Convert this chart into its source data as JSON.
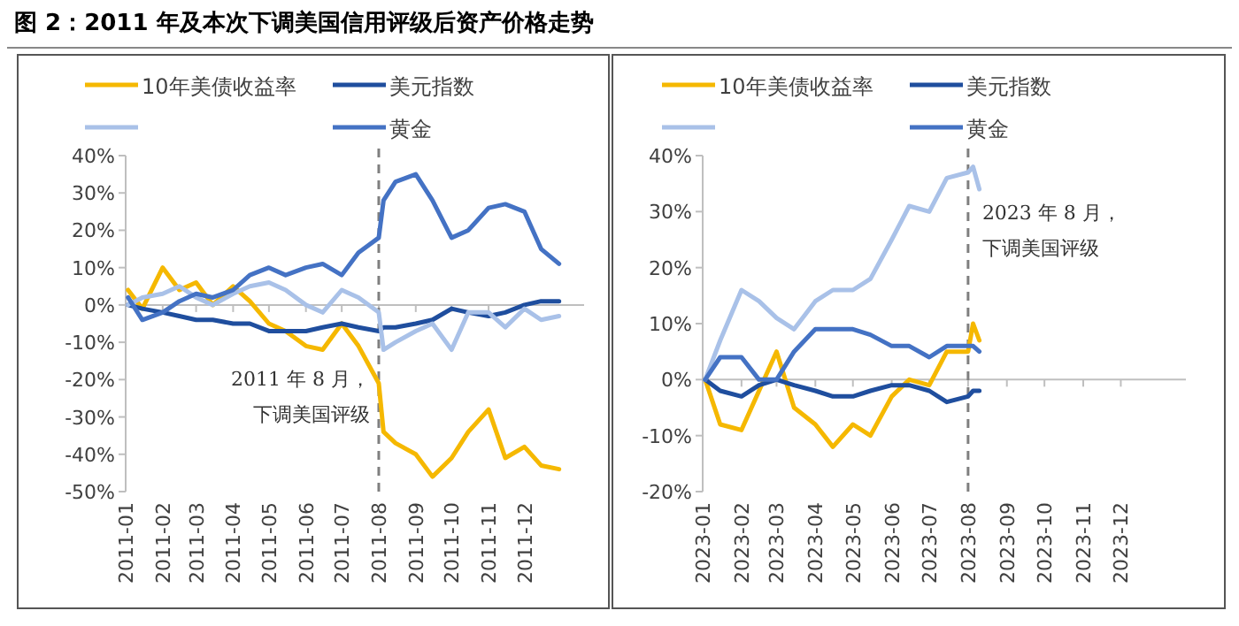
{
  "chart_data": [
    {
      "type": "line",
      "title": "图 2：2011 年及本次下调美国信用评级后资产价格走势",
      "x": [
        "2011-01-03",
        "2011-01-15",
        "2011-02-01",
        "2011-02-15",
        "2011-03-01",
        "2011-03-15",
        "2011-04-01",
        "2011-04-15",
        "2011-05-01",
        "2011-05-15",
        "2011-06-01",
        "2011-06-15",
        "2011-07-01",
        "2011-07-15",
        "2011-08-01",
        "2011-08-05",
        "2011-08-15",
        "2011-09-01",
        "2011-09-15",
        "2011-10-01",
        "2011-10-15",
        "2011-11-01",
        "2011-11-15",
        "2011-12-01",
        "2011-12-15",
        "2011-12-30"
      ],
      "series": [
        {
          "name": "10年美债收益率",
          "color": "#f5b800",
          "values": [
            4,
            -1,
            10,
            4,
            6,
            0,
            5,
            1,
            -5,
            -7,
            -11,
            -12,
            -5,
            -11,
            -21,
            -34,
            -37,
            -40,
            -46,
            -41,
            -34,
            -28,
            -41,
            -38,
            -43,
            -44
          ]
        },
        {
          "name": "美元指数",
          "color": "#1f4e9e",
          "values": [
            0,
            -1,
            -2,
            -3,
            -4,
            -4,
            -5,
            -5,
            -7,
            -7,
            -7,
            -6,
            -5,
            -6,
            -7,
            -6,
            -6,
            -5,
            -4,
            -1,
            -2,
            -3,
            -2,
            0,
            1,
            1
          ]
        },
        {
          "color": "#a9c1e8",
          "values": [
            0,
            2,
            3,
            5,
            2,
            0,
            3,
            5,
            6,
            4,
            0,
            -2,
            4,
            2,
            -2,
            -12,
            -10,
            -7,
            -5,
            -12,
            -2,
            -2,
            -6,
            -1,
            -4,
            -3
          ]
        },
        {
          "name": "黄金",
          "color": "#4472c4",
          "values": [
            2,
            -4,
            -2,
            1,
            3,
            2,
            4,
            8,
            10,
            8,
            10,
            11,
            8,
            14,
            18,
            28,
            33,
            35,
            28,
            18,
            20,
            26,
            27,
            25,
            15,
            11
          ]
        }
      ],
      "xlim": [
        "2011-01-01",
        "2012-01-20"
      ],
      "xticks": [
        "2011-01",
        "2011-02",
        "2011-03",
        "2011-04",
        "2011-05",
        "2011-06",
        "2011-07",
        "2011-08",
        "2011-09",
        "2011-10",
        "2011-11",
        "2011-12"
      ],
      "ylim": [
        -50,
        40
      ],
      "yticks": [
        {
          "value": 40,
          "label": "40%"
        },
        {
          "value": 30,
          "label": "30%"
        },
        {
          "value": 20,
          "label": "20%"
        },
        {
          "value": 10,
          "label": "10%"
        },
        {
          "value": 0,
          "label": "0%"
        },
        {
          "value": -10,
          "label": "-10%"
        },
        {
          "value": -20,
          "label": "-20%"
        },
        {
          "value": -30,
          "label": "-30%"
        },
        {
          "value": -40,
          "label": "-40%"
        },
        {
          "value": -50,
          "label": "-50%"
        }
      ],
      "ref_lines": [
        {
          "axis": "x",
          "value": "2011-08-01",
          "label": "2011 年 8 月，下调美国评级",
          "line_style": "dashed",
          "color": "#7f7f7f"
        }
      ],
      "legend": "top"
    },
    {
      "type": "line",
      "x": [
        "2023-01-03",
        "2023-01-15",
        "2023-02-01",
        "2023-02-15",
        "2023-03-01",
        "2023-03-15",
        "2023-04-01",
        "2023-04-15",
        "2023-05-01",
        "2023-05-15",
        "2023-06-01",
        "2023-06-15",
        "2023-07-01",
        "2023-07-15",
        "2023-08-01",
        "2023-08-05",
        "2023-08-10"
      ],
      "series": [
        {
          "name": "10年美债收益率",
          "color": "#f5b800",
          "values": [
            0,
            -8,
            -9,
            -2,
            5,
            -5,
            -8,
            -12,
            -8,
            -10,
            -3,
            0,
            -1,
            5,
            5,
            10,
            7
          ]
        },
        {
          "name": "美元指数",
          "color": "#1f4e9e",
          "values": [
            0,
            -2,
            -3,
            -1,
            0,
            -1,
            -2,
            -3,
            -3,
            -2,
            -1,
            -1,
            -2,
            -4,
            -3,
            -2,
            -2
          ]
        },
        {
          "color": "#a9c1e8",
          "values": [
            0,
            7,
            16,
            14,
            11,
            9,
            14,
            16,
            16,
            18,
            25,
            31,
            30,
            36,
            37,
            38,
            34
          ]
        },
        {
          "name": "黄金",
          "color": "#4472c4",
          "values": [
            0,
            4,
            4,
            0,
            0,
            5,
            9,
            9,
            9,
            8,
            6,
            6,
            4,
            6,
            6,
            6,
            5
          ]
        }
      ],
      "xlim": [
        "2023-01-01",
        "2024-01-22"
      ],
      "xticks": [
        "2023-01",
        "2023-02",
        "2023-03",
        "2023-04",
        "2023-05",
        "2023-06",
        "2023-07",
        "2023-08",
        "2023-09",
        "2023-10",
        "2023-11",
        "2023-12"
      ],
      "ylim": [
        -20,
        40
      ],
      "yticks": [
        {
          "value": 40,
          "label": "40%"
        },
        {
          "value": 30,
          "label": "30%"
        },
        {
          "value": 20,
          "label": "20%"
        },
        {
          "value": 10,
          "label": "10%"
        },
        {
          "value": 0,
          "label": "0%"
        },
        {
          "value": -10,
          "label": "-10%"
        },
        {
          "value": -20,
          "label": "-20%"
        }
      ],
      "ref_lines": [
        {
          "axis": "x",
          "value": "2023-08-01",
          "label": "2023 年 8 月，下调美国评级",
          "line_style": "dashed",
          "color": "#7f7f7f"
        }
      ],
      "legend": "top"
    }
  ]
}
